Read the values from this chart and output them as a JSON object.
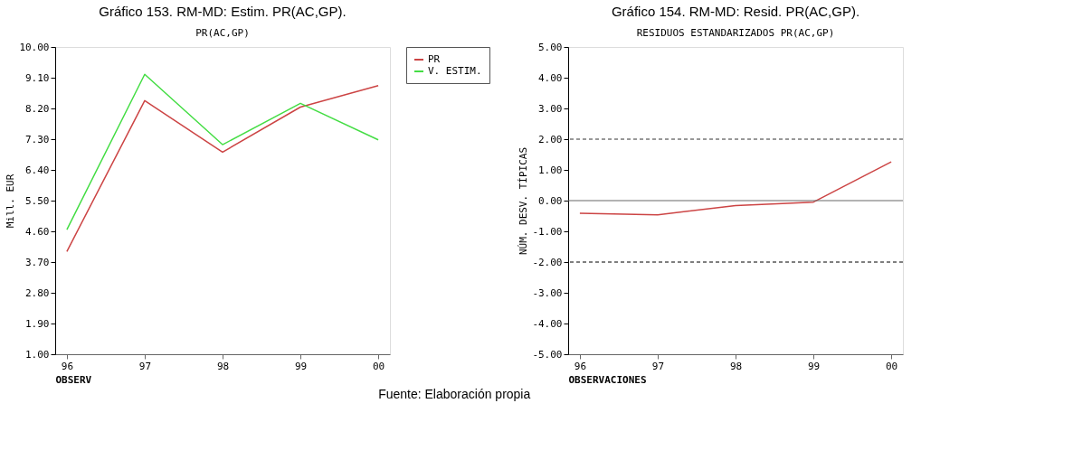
{
  "chart_data": [
    {
      "type": "line",
      "title": "Gráfico 153. RM-MD: Estim. PR(AC,GP).",
      "subtitle": "PR(AC,GP)",
      "xlabel": "OBSERV",
      "ylabel": "Mill. EUR",
      "categories": [
        "96",
        "97",
        "98",
        "99",
        "00"
      ],
      "series": [
        {
          "name": "PR",
          "color": "#cc4444",
          "values": [
            4.01,
            8.43,
            6.92,
            8.24,
            8.87
          ]
        },
        {
          "name": "V. ESTIM.",
          "color": "#44dd44",
          "values": [
            4.65,
            9.2,
            7.14,
            8.35,
            7.28
          ]
        }
      ],
      "ylim": [
        1.0,
        10.0
      ],
      "yticks": [
        {
          "value": 1.0,
          "label": "1.00"
        },
        {
          "value": 1.9,
          "label": "1.90"
        },
        {
          "value": 2.8,
          "label": "2.80"
        },
        {
          "value": 3.7,
          "label": "3.70"
        },
        {
          "value": 4.6,
          "label": "4.60"
        },
        {
          "value": 5.5,
          "label": "5.50"
        },
        {
          "value": 6.4,
          "label": "6.40"
        },
        {
          "value": 7.3,
          "label": "7.30"
        },
        {
          "value": 8.2,
          "label": "8.20"
        },
        {
          "value": 9.1,
          "label": "9.10"
        },
        {
          "value": 10.0,
          "label": "10.00"
        }
      ],
      "legend": "top right",
      "grid": false,
      "annotations": [
        "Fuente: Elaboración propia"
      ]
    },
    {
      "type": "line",
      "title": "Gráfico 154. RM-MD: Resid. PR(AC,GP).",
      "subtitle": "RESIDUOS ESTANDARIZADOS PR(AC,GP)",
      "xlabel": "OBSERVACIONES",
      "ylabel": "NÚM. DESV. TÍPICAS",
      "categories": [
        "96",
        "97",
        "98",
        "99",
        "00"
      ],
      "series": [
        {
          "color": "#cc4444",
          "values": [
            -0.41,
            -0.46,
            -0.16,
            -0.05,
            1.26
          ]
        }
      ],
      "ylim": [
        -5.0,
        5.0
      ],
      "yticks": [
        {
          "value": -5,
          "label": "-5.00"
        },
        {
          "value": -4,
          "label": "-4.00"
        },
        {
          "value": -3,
          "label": "-3.00"
        },
        {
          "value": -2,
          "label": "-2.00"
        },
        {
          "value": -1,
          "label": "-1.00"
        },
        {
          "value": 0,
          "label": "0.00"
        },
        {
          "value": 1,
          "label": "1.00"
        },
        {
          "value": 2,
          "label": "2.00"
        },
        {
          "value": 3,
          "label": "3.00"
        },
        {
          "value": 4,
          "label": "4.00"
        },
        {
          "value": 5,
          "label": "5.00"
        }
      ],
      "ref_lines": [
        {
          "axis": "y",
          "value": 2,
          "color": "#333333",
          "line_style": "dashed"
        },
        {
          "axis": "y",
          "value": -2,
          "color": "#000000",
          "line_style": "dashed"
        },
        {
          "axis": "y",
          "value": 0,
          "color": "#666666",
          "line_style": "solid"
        }
      ],
      "legend": false,
      "grid": false
    }
  ]
}
